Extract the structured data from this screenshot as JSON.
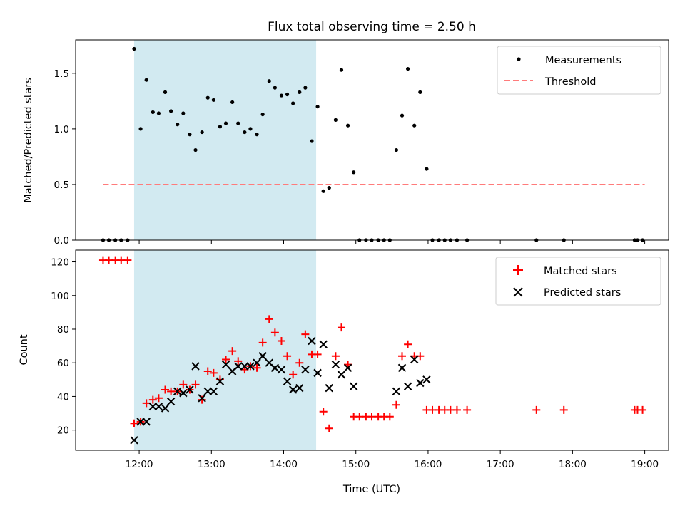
{
  "title": "Flux total observing time = 2.50 h",
  "colors": {
    "shade": "#add8e6",
    "measurement": "#000000",
    "threshold": "#ff7b7b",
    "matched": "#ff0000",
    "predicted": "#000000"
  },
  "x_ticks": [
    "12:00",
    "13:00",
    "14:00",
    "15:00",
    "16:00",
    "17:00",
    "18:00",
    "19:00"
  ],
  "xlabel": "Time (UTC)",
  "chart_data": [
    {
      "type": "scatter",
      "panel": "top",
      "title": "Flux total observing time = 2.50 h",
      "xlabel": "",
      "ylabel": "Matched/Predicted stars",
      "x_unit": "hours UTC",
      "xlim": [
        11.12,
        19.33
      ],
      "ylim": [
        0,
        1.8
      ],
      "y_ticks": [
        "0.0",
        "0.5",
        "1.0",
        "1.5"
      ],
      "grid": false,
      "legend": "top-right",
      "shaded_interval": [
        11.93,
        14.45
      ],
      "threshold": {
        "name": "Threshold",
        "value": 0.5,
        "x_range": [
          11.5,
          19.0
        ]
      },
      "series": [
        {
          "name": "Measurements",
          "points": [
            [
              11.5,
              0
            ],
            [
              11.58,
              0
            ],
            [
              11.67,
              0
            ],
            [
              11.75,
              0
            ],
            [
              11.84,
              0
            ],
            [
              11.93,
              1.72
            ],
            [
              12.02,
              1.0
            ],
            [
              12.1,
              1.44
            ],
            [
              12.19,
              1.15
            ],
            [
              12.27,
              1.14
            ],
            [
              12.36,
              1.33
            ],
            [
              12.44,
              1.16
            ],
            [
              12.53,
              1.04
            ],
            [
              12.61,
              1.14
            ],
            [
              12.7,
              0.95
            ],
            [
              12.78,
              0.81
            ],
            [
              12.87,
              0.97
            ],
            [
              12.95,
              1.28
            ],
            [
              13.03,
              1.26
            ],
            [
              13.12,
              1.02
            ],
            [
              13.2,
              1.05
            ],
            [
              13.29,
              1.24
            ],
            [
              13.37,
              1.05
            ],
            [
              13.46,
              0.97
            ],
            [
              13.54,
              1.0
            ],
            [
              13.63,
              0.95
            ],
            [
              13.71,
              1.13
            ],
            [
              13.8,
              1.43
            ],
            [
              13.88,
              1.37
            ],
            [
              13.97,
              1.3
            ],
            [
              14.05,
              1.31
            ],
            [
              14.13,
              1.23
            ],
            [
              14.22,
              1.33
            ],
            [
              14.3,
              1.37
            ],
            [
              14.39,
              0.89
            ],
            [
              14.47,
              1.2
            ],
            [
              14.55,
              0.44
            ],
            [
              14.63,
              0.47
            ],
            [
              14.72,
              1.08
            ],
            [
              14.8,
              1.53
            ],
            [
              14.89,
              1.03
            ],
            [
              14.97,
              0.61
            ],
            [
              15.05,
              0
            ],
            [
              15.14,
              0
            ],
            [
              15.22,
              0
            ],
            [
              15.31,
              0
            ],
            [
              15.39,
              0
            ],
            [
              15.47,
              0
            ],
            [
              15.56,
              0.81
            ],
            [
              15.64,
              1.12
            ],
            [
              15.72,
              1.54
            ],
            [
              15.81,
              1.03
            ],
            [
              15.89,
              1.33
            ],
            [
              15.98,
              0.64
            ],
            [
              16.06,
              0
            ],
            [
              16.15,
              0
            ],
            [
              16.23,
              0
            ],
            [
              16.31,
              0
            ],
            [
              16.4,
              0
            ],
            [
              16.54,
              0
            ],
            [
              17.5,
              0
            ],
            [
              17.88,
              0
            ],
            [
              18.86,
              0
            ],
            [
              18.9,
              0
            ],
            [
              18.97,
              0
            ]
          ]
        }
      ]
    },
    {
      "type": "scatter",
      "panel": "bottom",
      "xlabel": "Time (UTC)",
      "ylabel": "Count",
      "x_unit": "hours UTC",
      "xlim": [
        11.12,
        19.33
      ],
      "ylim": [
        8,
        127
      ],
      "y_ticks": [
        "20",
        "40",
        "60",
        "80",
        "100",
        "120"
      ],
      "grid": false,
      "legend": "top-right",
      "shaded_interval": [
        11.93,
        14.45
      ],
      "series": [
        {
          "name": "Matched stars",
          "marker": "+",
          "points": [
            [
              11.5,
              121
            ],
            [
              11.58,
              121
            ],
            [
              11.67,
              121
            ],
            [
              11.75,
              121
            ],
            [
              11.84,
              121
            ],
            [
              11.93,
              24
            ],
            [
              12.02,
              25
            ],
            [
              12.1,
              36
            ],
            [
              12.19,
              38
            ],
            [
              12.27,
              39
            ],
            [
              12.36,
              44
            ],
            [
              12.44,
              43
            ],
            [
              12.53,
              43
            ],
            [
              12.61,
              47
            ],
            [
              12.7,
              44
            ],
            [
              12.78,
              47
            ],
            [
              12.87,
              38
            ],
            [
              12.95,
              55
            ],
            [
              13.03,
              54
            ],
            [
              13.12,
              50
            ],
            [
              13.2,
              62
            ],
            [
              13.29,
              67
            ],
            [
              13.37,
              61
            ],
            [
              13.46,
              56
            ],
            [
              13.54,
              58
            ],
            [
              13.63,
              57
            ],
            [
              13.71,
              72
            ],
            [
              13.8,
              86
            ],
            [
              13.88,
              78
            ],
            [
              13.97,
              73
            ],
            [
              14.05,
              64
            ],
            [
              14.13,
              53
            ],
            [
              14.22,
              60
            ],
            [
              14.3,
              77
            ],
            [
              14.39,
              65
            ],
            [
              14.47,
              65
            ],
            [
              14.55,
              31
            ],
            [
              14.63,
              21
            ],
            [
              14.72,
              64
            ],
            [
              14.8,
              81
            ],
            [
              14.89,
              59
            ],
            [
              14.97,
              28
            ],
            [
              15.05,
              28
            ],
            [
              15.14,
              28
            ],
            [
              15.22,
              28
            ],
            [
              15.31,
              28
            ],
            [
              15.39,
              28
            ],
            [
              15.47,
              28
            ],
            [
              15.56,
              35
            ],
            [
              15.64,
              64
            ],
            [
              15.72,
              71
            ],
            [
              15.81,
              64
            ],
            [
              15.89,
              64
            ],
            [
              15.98,
              32
            ],
            [
              16.06,
              32
            ],
            [
              16.15,
              32
            ],
            [
              16.23,
              32
            ],
            [
              16.31,
              32
            ],
            [
              16.4,
              32
            ],
            [
              16.54,
              32
            ],
            [
              17.5,
              32
            ],
            [
              17.88,
              32
            ],
            [
              18.86,
              32
            ],
            [
              18.9,
              32
            ],
            [
              18.97,
              32
            ]
          ]
        },
        {
          "name": "Predicted stars",
          "marker": "x",
          "points": [
            [
              11.93,
              14
            ],
            [
              12.02,
              25
            ],
            [
              12.1,
              25
            ],
            [
              12.19,
              34
            ],
            [
              12.27,
              34
            ],
            [
              12.36,
              33
            ],
            [
              12.44,
              37
            ],
            [
              12.53,
              43
            ],
            [
              12.61,
              42
            ],
            [
              12.7,
              44
            ],
            [
              12.78,
              58
            ],
            [
              12.87,
              39
            ],
            [
              12.95,
              43
            ],
            [
              13.03,
              43
            ],
            [
              13.12,
              49
            ],
            [
              13.2,
              59
            ],
            [
              13.29,
              55
            ],
            [
              13.37,
              58
            ],
            [
              13.46,
              58
            ],
            [
              13.54,
              58
            ],
            [
              13.63,
              60
            ],
            [
              13.71,
              64
            ],
            [
              13.8,
              60
            ],
            [
              13.88,
              57
            ],
            [
              13.97,
              56
            ],
            [
              14.05,
              49
            ],
            [
              14.13,
              44
            ],
            [
              14.22,
              45
            ],
            [
              14.3,
              56
            ],
            [
              14.39,
              73
            ],
            [
              14.47,
              54
            ],
            [
              14.55,
              71
            ],
            [
              14.63,
              45
            ],
            [
              14.72,
              59
            ],
            [
              14.8,
              53
            ],
            [
              14.89,
              57
            ],
            [
              14.97,
              46
            ],
            [
              15.56,
              43
            ],
            [
              15.64,
              57
            ],
            [
              15.72,
              46
            ],
            [
              15.81,
              62
            ],
            [
              15.89,
              48
            ],
            [
              15.98,
              50
            ]
          ]
        }
      ]
    }
  ]
}
